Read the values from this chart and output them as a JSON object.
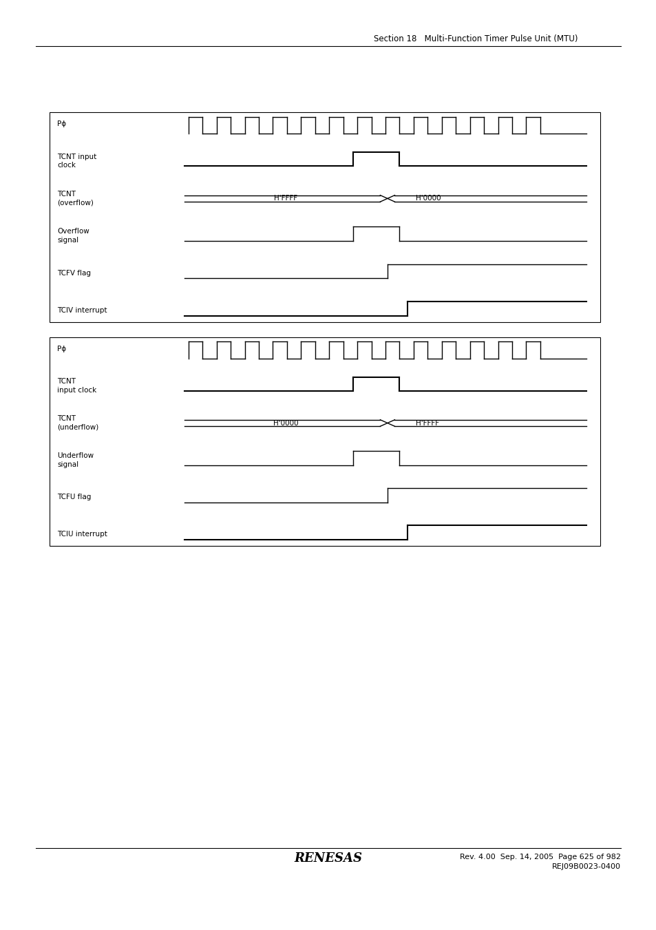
{
  "header_text": "Section 18   Multi-Function Timer Pulse Unit (MTU)",
  "footer_line1": "Rev. 4.00  Sep. 14, 2005  Page 625 of 982",
  "footer_line2": "REJ09B0023-0400",
  "bg_color": "#ffffff",
  "diagram1": {
    "labels": [
      "Pϕ",
      "TCNT input\nclock",
      "TCNT\n(overflow)",
      "Overflow\nsignal",
      "TCFV flag",
      "TCIV interrupt"
    ],
    "val_labels": [
      "H'FFFF",
      "H'0000"
    ]
  },
  "diagram2": {
    "labels": [
      "Pϕ",
      "TCNT\ninput clock",
      "TCNT\n(underflow)",
      "Underflow\nsignal",
      "TCFU flag",
      "TCIU interrupt"
    ],
    "val_labels": [
      "H'0000",
      "H'FFFF"
    ]
  }
}
